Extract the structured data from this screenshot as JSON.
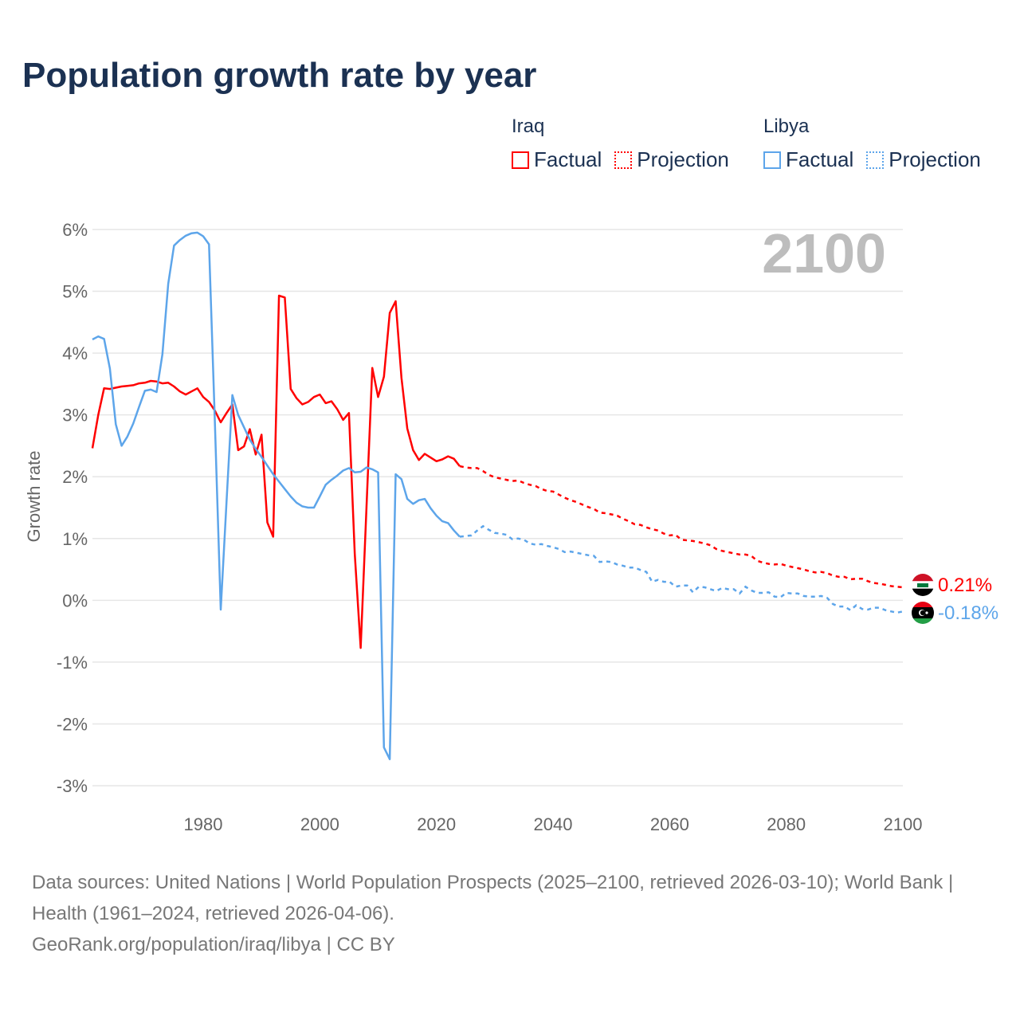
{
  "title": "Population growth rate by year",
  "legend": [
    {
      "country": "Iraq",
      "factual": "Factual",
      "projection": "Projection",
      "color": "#ff0000"
    },
    {
      "country": "Libya",
      "factual": "Factual",
      "projection": "Projection",
      "color": "#5da5ea"
    }
  ],
  "footer": {
    "sources": "Data sources: United Nations | World Population Prospects (2025–2100, retrieved 2026-03-10); World Bank | Health (1961–2024, retrieved 2026-04-06).",
    "credit": "GeoRank.org/population/iraq/libya | CC BY"
  },
  "chart_data": {
    "type": "line",
    "title": "Population growth rate by year",
    "xlabel": "",
    "ylabel": "Growth rate",
    "current_year_label": "2100",
    "xlim": [
      1961,
      2100
    ],
    "ylim": [
      -3,
      6
    ],
    "x_ticks": [
      1980,
      2000,
      2020,
      2040,
      2060,
      2080,
      2100
    ],
    "y_ticks": [
      -3,
      -2,
      -1,
      0,
      1,
      2,
      3,
      4,
      5,
      6
    ],
    "y_tick_labels": [
      "-3%",
      "-2%",
      "-1%",
      "0%",
      "1%",
      "2%",
      "3%",
      "4%",
      "5%",
      "6%"
    ],
    "grid": true,
    "legend_position": "top-right",
    "series": [
      {
        "name": "Iraq",
        "color": "#ff0000",
        "end_label": "0.21%",
        "flag": "iraq-flag",
        "factual_start": 1961,
        "factual": [
          2.46,
          3.0,
          3.43,
          3.42,
          3.44,
          3.46,
          3.47,
          3.48,
          3.51,
          3.52,
          3.55,
          3.54,
          3.51,
          3.52,
          3.46,
          3.38,
          3.33,
          3.38,
          3.43,
          3.29,
          3.21,
          3.07,
          2.88,
          3.03,
          3.17,
          2.43,
          2.49,
          2.77,
          2.36,
          2.68,
          1.26,
          1.03,
          4.93,
          4.9,
          3.42,
          3.27,
          3.17,
          3.21,
          3.29,
          3.33,
          3.19,
          3.22,
          3.09,
          2.92,
          3.03,
          0.75,
          -0.77,
          1.5,
          3.76,
          3.29,
          3.62,
          4.65,
          4.84,
          3.6,
          2.78,
          2.43,
          2.27,
          2.37,
          2.31,
          2.25,
          2.28,
          2.33,
          2.29,
          2.17
        ],
        "projection_start": 2025,
        "projection": [
          2.15,
          2.14,
          2.14,
          2.09,
          2.03,
          1.99,
          1.97,
          1.95,
          1.93,
          1.94,
          1.9,
          1.87,
          1.85,
          1.8,
          1.77,
          1.76,
          1.71,
          1.66,
          1.62,
          1.59,
          1.55,
          1.51,
          1.48,
          1.42,
          1.41,
          1.39,
          1.37,
          1.32,
          1.28,
          1.23,
          1.22,
          1.18,
          1.15,
          1.13,
          1.08,
          1.05,
          1.06,
          0.98,
          0.97,
          0.96,
          0.94,
          0.92,
          0.89,
          0.83,
          0.8,
          0.78,
          0.76,
          0.74,
          0.74,
          0.72,
          0.64,
          0.61,
          0.59,
          0.58,
          0.59,
          0.56,
          0.54,
          0.52,
          0.5,
          0.47,
          0.45,
          0.46,
          0.44,
          0.4,
          0.38,
          0.38,
          0.34,
          0.35,
          0.35,
          0.31,
          0.28,
          0.27,
          0.25,
          0.23,
          0.22,
          0.21
        ]
      },
      {
        "name": "Libya",
        "color": "#5da5ea",
        "end_label": "-0.18%",
        "flag": "libya-flag",
        "factual_start": 1961,
        "factual": [
          4.22,
          4.27,
          4.23,
          3.75,
          2.85,
          2.5,
          2.65,
          2.86,
          3.13,
          3.39,
          3.41,
          3.37,
          3.98,
          5.12,
          5.74,
          5.83,
          5.9,
          5.94,
          5.95,
          5.89,
          5.76,
          2.9,
          -0.15,
          1.6,
          3.32,
          3.0,
          2.8,
          2.6,
          2.45,
          2.32,
          2.18,
          2.04,
          1.92,
          1.8,
          1.68,
          1.58,
          1.52,
          1.5,
          1.5,
          1.68,
          1.87,
          1.95,
          2.02,
          2.1,
          2.14,
          2.07,
          2.08,
          2.15,
          2.12,
          2.07,
          -2.38,
          -2.57,
          2.04,
          1.96,
          1.64,
          1.56,
          1.62,
          1.64,
          1.49,
          1.37,
          1.28,
          1.25,
          1.13,
          1.03
        ],
        "projection_start": 2025,
        "projection": [
          1.04,
          1.05,
          1.13,
          1.2,
          1.14,
          1.09,
          1.08,
          1.06,
          0.99,
          1.0,
          0.98,
          0.92,
          0.9,
          0.91,
          0.88,
          0.86,
          0.83,
          0.78,
          0.79,
          0.77,
          0.75,
          0.73,
          0.72,
          0.62,
          0.63,
          0.62,
          0.58,
          0.56,
          0.53,
          0.53,
          0.49,
          0.46,
          0.3,
          0.33,
          0.3,
          0.3,
          0.22,
          0.24,
          0.24,
          0.13,
          0.22,
          0.21,
          0.18,
          0.15,
          0.2,
          0.18,
          0.18,
          0.11,
          0.22,
          0.16,
          0.12,
          0.12,
          0.13,
          0.06,
          0.05,
          0.12,
          0.11,
          0.11,
          0.07,
          0.06,
          0.06,
          0.07,
          0.04,
          -0.06,
          -0.1,
          -0.1,
          -0.16,
          -0.08,
          -0.14,
          -0.15,
          -0.12,
          -0.12,
          -0.16,
          -0.18,
          -0.2,
          -0.18
        ]
      }
    ]
  }
}
